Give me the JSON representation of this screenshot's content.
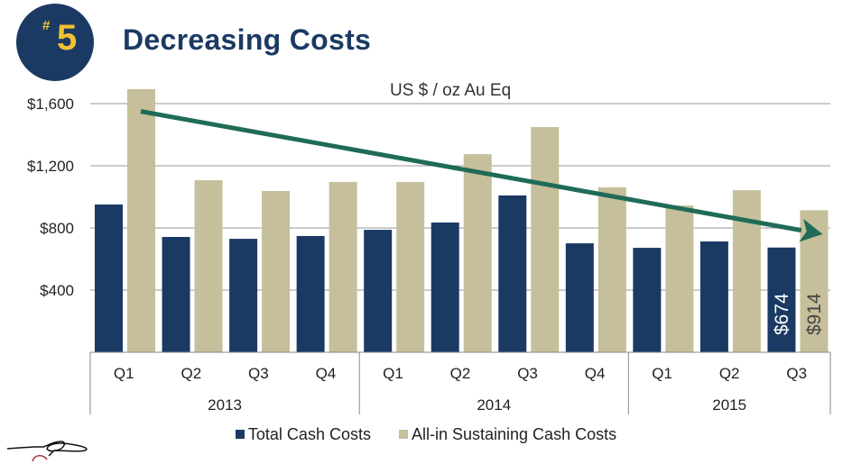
{
  "header": {
    "badge_hash": "#",
    "badge_number": "5",
    "title": "Decreasing Costs"
  },
  "colors": {
    "total_cash": "#1b3a63",
    "aisc": "#c6bf9b",
    "trend_arrow": "#1f6b58",
    "badge_bg": "#1b3a63",
    "badge_text": "#f1c232",
    "title": "#1b3a63"
  },
  "chart_data": {
    "type": "bar",
    "title": "Decreasing Costs",
    "subtitle": "US $ / oz Au Eq",
    "xlabel": "",
    "ylabel": "US $ / oz Au Eq",
    "ylim": [
      0,
      1700
    ],
    "yticks": [
      400,
      800,
      1200,
      1600
    ],
    "ytick_labels": [
      "$400",
      "$800",
      "$1,200",
      "$1,600"
    ],
    "grid": true,
    "categories": [
      "Q1",
      "Q2",
      "Q3",
      "Q4",
      "Q1",
      "Q2",
      "Q3",
      "Q4",
      "Q1",
      "Q2",
      "Q3"
    ],
    "groups": [
      {
        "label": "2013",
        "count": 4
      },
      {
        "label": "2014",
        "count": 4
      },
      {
        "label": "2015",
        "count": 3
      }
    ],
    "series": [
      {
        "name": "Total Cash Costs",
        "values": [
          951,
          742,
          730,
          748,
          788,
          835,
          1009,
          701,
          672,
          713,
          674
        ]
      },
      {
        "name": "All-in Sustaining Cash Costs",
        "values": [
          1693,
          1107,
          1038,
          1096,
          1096,
          1275,
          1449,
          1061,
          945,
          1043,
          914
        ]
      }
    ],
    "data_labels": [
      {
        "series": 0,
        "index": 10,
        "text": "$674"
      },
      {
        "series": 1,
        "index": 10,
        "text": "$914"
      }
    ],
    "annotations": [
      {
        "type": "trend-arrow",
        "from": {
          "index": 0,
          "value": 1550
        },
        "to": {
          "index": 10,
          "value": 760
        }
      }
    ],
    "legend": {
      "position": "bottom",
      "entries": [
        "Total Cash Costs",
        "All-in Sustaining Cash Costs"
      ]
    }
  }
}
